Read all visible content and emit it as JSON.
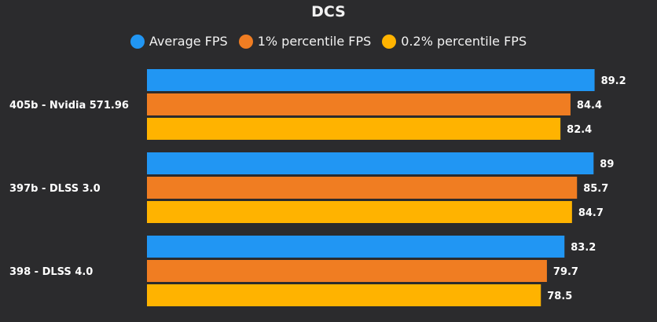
{
  "chart_data": {
    "type": "bar",
    "orientation": "horizontal",
    "title": "DCS",
    "categories": [
      "405b - Nvidia 571.96",
      "397b - DLSS 3.0",
      "398 - DLSS 4.0"
    ],
    "series": [
      {
        "name": "Average FPS",
        "color": "#2196f3",
        "values": [
          89.2,
          89,
          83.2
        ],
        "labels": [
          "89.2",
          "89",
          "83.2"
        ]
      },
      {
        "name": "1% percentile FPS",
        "color": "#f07d22",
        "values": [
          84.4,
          85.7,
          79.7
        ],
        "labels": [
          "84.4",
          "85.7",
          "79.7"
        ]
      },
      {
        "name": "0.2% percentile FPS",
        "color": "#ffb300",
        "values": [
          82.4,
          84.7,
          78.5
        ],
        "labels": [
          "82.4",
          "84.7",
          "78.5"
        ]
      }
    ],
    "xlim": [
      0,
      96
    ],
    "legend_position": "top",
    "grid": false,
    "axis_visible": false
  }
}
